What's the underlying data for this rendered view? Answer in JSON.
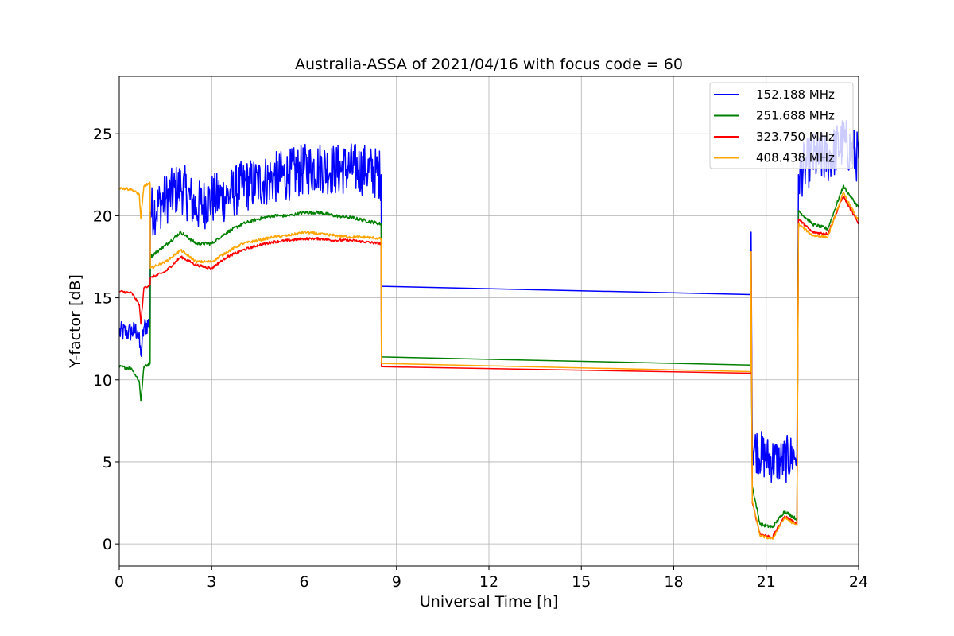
{
  "chart_data": {
    "type": "line",
    "title": "Australia-ASSA of 2021/04/16 with focus code = 60",
    "xlabel": "Universal Time [h]",
    "ylabel": "Y-factor [dB]",
    "xlim": [
      0,
      24
    ],
    "ylim": [
      -1.35,
      28.5
    ],
    "xticks": [
      0,
      3,
      6,
      9,
      12,
      15,
      18,
      21,
      24
    ],
    "yticks": [
      0,
      5,
      10,
      15,
      20,
      25
    ],
    "grid": true,
    "legend_position": "top-right",
    "series": [
      {
        "name": "152.188 MHz",
        "color": "#0000ff",
        "noise": 1.6,
        "x": [
          0,
          0.3,
          0.6,
          0.7,
          0.8,
          1.0,
          1.01,
          1.5,
          2.0,
          2.5,
          3.0,
          3.5,
          4.0,
          4.5,
          5.0,
          5.5,
          6.0,
          6.5,
          7.0,
          7.5,
          8.0,
          8.5,
          8.51,
          20.5,
          20.51,
          20.55,
          21.0,
          21.5,
          22.0,
          22.05,
          22.5,
          23.0,
          23.5,
          24.0
        ],
        "y": [
          12.9,
          12.9,
          13.0,
          11.5,
          13.2,
          13.5,
          20.2,
          21.0,
          21.8,
          20.5,
          21.0,
          21.2,
          21.8,
          22.0,
          22.3,
          22.5,
          22.8,
          23.0,
          22.8,
          22.9,
          22.8,
          22.5,
          15.7,
          15.2,
          19.0,
          6.0,
          5.2,
          5.0,
          5.5,
          22.5,
          23.5,
          23.5,
          24.5,
          23.5
        ]
      },
      {
        "name": "251.688 MHz",
        "color": "#008000",
        "noise": 0.25,
        "x": [
          0,
          0.4,
          0.65,
          0.7,
          0.8,
          1.0,
          1.01,
          1.5,
          2.0,
          2.5,
          3.0,
          3.5,
          4.0,
          4.5,
          5.0,
          5.5,
          6.0,
          6.5,
          7.0,
          7.5,
          8.0,
          8.5,
          8.51,
          20.5,
          20.51,
          20.55,
          20.8,
          21.2,
          21.6,
          22.0,
          22.05,
          22.5,
          23.0,
          23.5,
          24.0
        ],
        "y": [
          10.8,
          10.7,
          9.9,
          8.7,
          10.8,
          11.0,
          17.5,
          18.2,
          19.0,
          18.3,
          18.3,
          19.0,
          19.5,
          19.8,
          20.0,
          20.0,
          20.2,
          20.2,
          20.0,
          19.9,
          19.7,
          19.5,
          11.4,
          10.9,
          15.0,
          3.5,
          1.2,
          1.0,
          2.0,
          1.5,
          20.3,
          19.5,
          19.2,
          21.8,
          20.5
        ]
      },
      {
        "name": "323.750 MHz",
        "color": "#ff0000",
        "noise": 0.2,
        "x": [
          0,
          0.4,
          0.65,
          0.7,
          0.8,
          1.0,
          1.01,
          1.5,
          2.0,
          2.5,
          3.0,
          3.5,
          4.0,
          4.5,
          5.0,
          5.5,
          6.0,
          6.5,
          7.0,
          7.5,
          8.0,
          8.5,
          8.51,
          20.5,
          20.51,
          20.55,
          20.8,
          21.2,
          21.6,
          22.0,
          22.05,
          22.5,
          23.0,
          23.5,
          24.0
        ],
        "y": [
          15.4,
          15.3,
          14.6,
          13.4,
          15.6,
          15.8,
          16.2,
          16.6,
          17.5,
          17.0,
          16.8,
          17.5,
          17.9,
          18.2,
          18.4,
          18.5,
          18.6,
          18.6,
          18.5,
          18.5,
          18.4,
          18.3,
          10.8,
          10.4,
          17.8,
          2.5,
          0.6,
          0.4,
          1.7,
          1.2,
          19.8,
          19.0,
          18.9,
          21.2,
          19.5
        ]
      },
      {
        "name": "408.438 MHz",
        "color": "#ffa500",
        "noise": 0.2,
        "x": [
          0,
          0.4,
          0.65,
          0.7,
          0.8,
          1.0,
          1.01,
          1.5,
          2.0,
          2.5,
          3.0,
          3.5,
          4.0,
          4.5,
          5.0,
          5.5,
          6.0,
          6.5,
          7.0,
          7.5,
          8.0,
          8.5,
          8.51,
          20.5,
          20.51,
          20.55,
          20.8,
          21.2,
          21.6,
          22.0,
          22.05,
          22.5,
          23.0,
          23.5,
          24.0
        ],
        "y": [
          21.7,
          21.6,
          21.3,
          19.8,
          21.8,
          22.0,
          16.8,
          17.2,
          17.9,
          17.2,
          17.2,
          17.8,
          18.3,
          18.5,
          18.7,
          18.8,
          19.0,
          18.9,
          18.8,
          18.7,
          18.7,
          18.6,
          11.0,
          10.5,
          17.8,
          2.6,
          0.5,
          0.3,
          1.6,
          1.1,
          19.5,
          18.8,
          18.7,
          21.4,
          19.7
        ]
      }
    ]
  }
}
